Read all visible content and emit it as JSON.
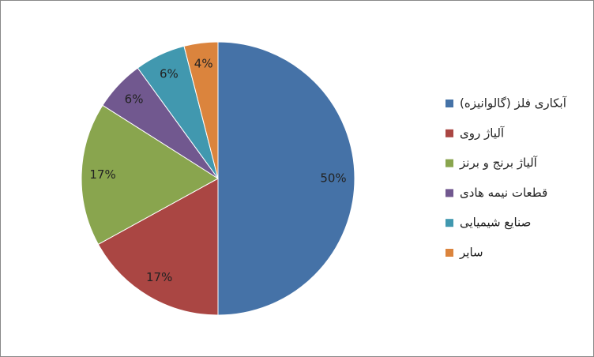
{
  "chart_data": {
    "type": "pie",
    "categories": [
      "آبکاری فلز (گالوانیزه)",
      "آلیاژ روی",
      "آلیاژ برنج و برنز",
      "قطعات نیمه هادی",
      "صنایع شیمیایی",
      "سایر"
    ],
    "values": [
      50,
      17,
      17,
      6,
      6,
      4
    ],
    "value_labels": [
      "50%",
      "17%",
      "17%",
      "6%",
      "6%",
      "4%"
    ],
    "colors": [
      "#4572A7",
      "#AA4643",
      "#89A54E",
      "#71588F",
      "#4198AF",
      "#DB843D"
    ],
    "legend": "right"
  }
}
